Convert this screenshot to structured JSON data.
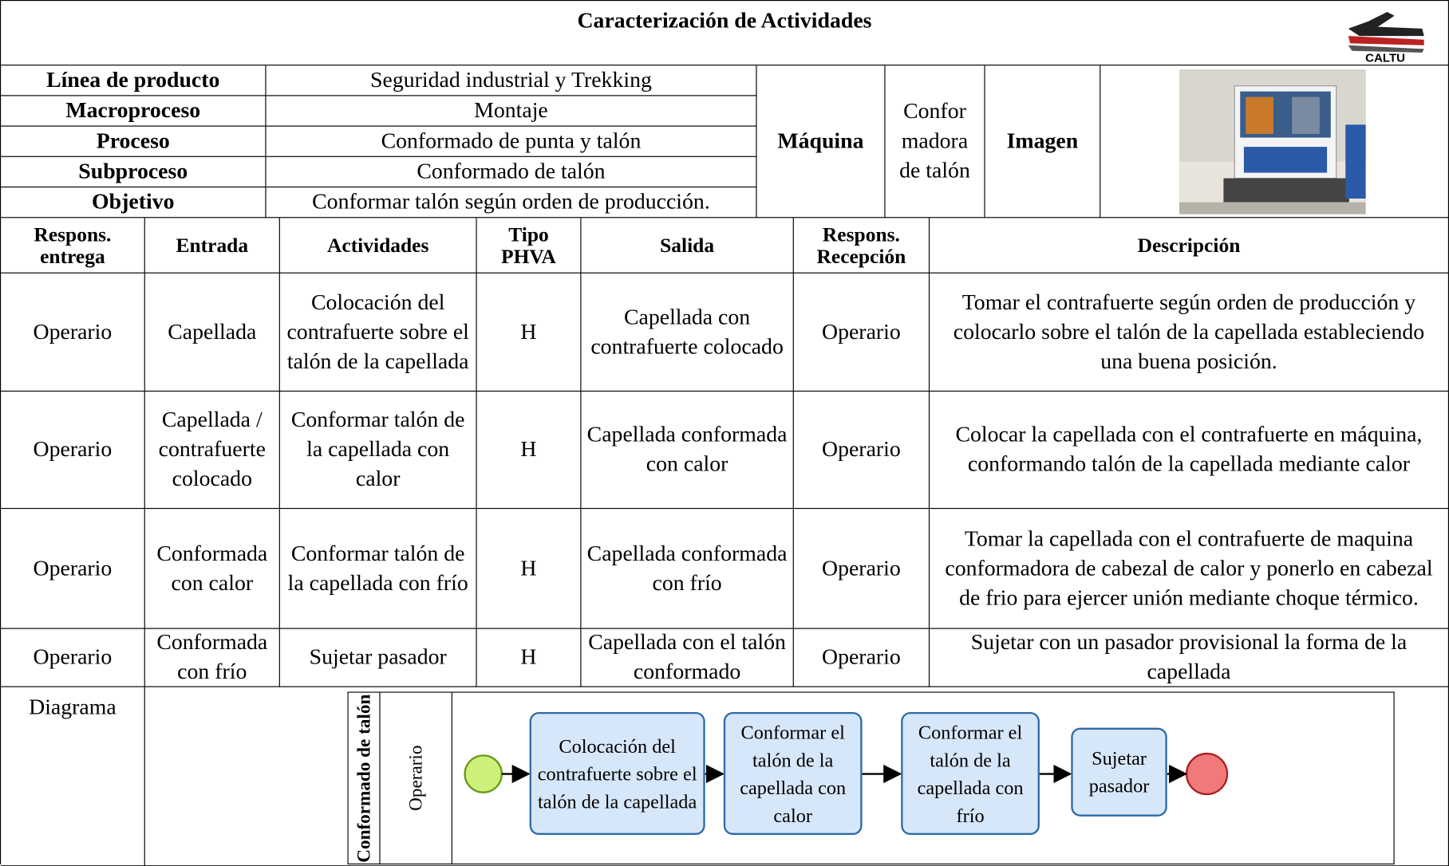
{
  "header": {
    "title": "Caracterización de Actividades",
    "logo_text": "CALTU"
  },
  "product_info": {
    "rows": [
      [
        "Línea de producto",
        "Seguridad industrial y Trekking"
      ],
      [
        "Macroproceso",
        "Montaje"
      ],
      [
        "Proceso",
        "Conformado de punta y talón"
      ],
      [
        "Subproceso",
        "Conformado de talón"
      ],
      [
        "Objetivo",
        "Conformar talón según orden de producción."
      ]
    ],
    "machine_label": "Máquina",
    "machine": "Conformadora de talón",
    "image_label": "Imagen"
  },
  "table": {
    "columns": [
      "Respons. entrega",
      "Entrada",
      "Actividades",
      "Tipo PHVA",
      "Salida",
      "Respons. Recepción",
      "Descripción"
    ],
    "rows": [
      [
        "Operario",
        "Capellada",
        "Colocación del contrafuerte sobre el talón de la capellada",
        "H",
        "Capellada con contrafuerte colocado",
        "Operario",
        "Tomar el contrafuerte según orden de producción y colocarlo sobre el talón de la capellada estableciendo una buena posición."
      ],
      [
        "Operario",
        "Capellada / contrafuerte colocado",
        "Conformar talón de la capellada con calor",
        "H",
        "Capellada conformada con calor",
        "Operario",
        "Colocar la capellada con el contrafuerte en máquina, conformando talón de la capellada mediante calor"
      ],
      [
        "Operario",
        "Conformada con calor",
        "Conformar talón de la capellada con frío",
        "H",
        "Capellada conformada con frío",
        "Operario",
        "Tomar la capellada con el contrafuerte de maquina conformadora de cabezal de calor y ponerlo en cabezal de frio para ejercer unión mediante choque térmico."
      ],
      [
        "Operario",
        "Conformada con frío",
        "Sujetar pasador",
        "H",
        "Capellada con el talón conformado",
        "Operario",
        "Sujetar con un pasador provisional la forma de la capellada"
      ]
    ]
  },
  "diagram": {
    "label": "Diagrama",
    "pool": "Conformado de talón",
    "lane": "Operario",
    "tasks": [
      "Colocación del contrafuerte sobre el talón de la capellada",
      "Conformar el talón de la capellada con calor",
      "Conformar el talón de la capellada con frío",
      "Sujetar pasador"
    ]
  }
}
